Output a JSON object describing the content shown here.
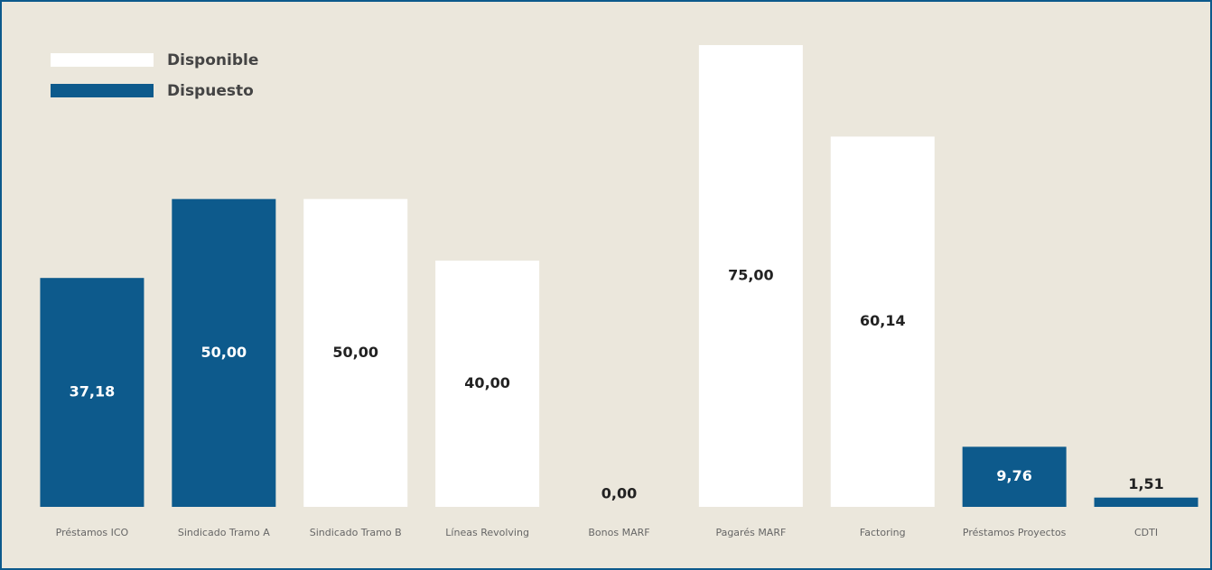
{
  "chart_data": {
    "type": "bar",
    "stacked": true,
    "categories": [
      "Préstamos ICO",
      "Sindicado Tramo A",
      "Sindicado Tramo B",
      "Líneas Revolving",
      "Bonos MARF",
      "Pagarés MARF",
      "Factoring",
      "Préstamos Proyectos",
      "CDTI"
    ],
    "series": [
      {
        "name": "Disponible",
        "color": "#ffffff",
        "values": [
          null,
          null,
          50,
          40,
          0,
          75,
          60.14,
          null,
          null
        ],
        "value_labels": [
          null,
          null,
          "50,00",
          "40,00",
          "0,00",
          "75,00",
          "60,14",
          null,
          null
        ]
      },
      {
        "name": "Dispuesto",
        "color": "#0d5a8c",
        "values": [
          37.18,
          50,
          null,
          null,
          null,
          null,
          null,
          9.76,
          1.51
        ],
        "value_labels": [
          "37,18",
          "50,00",
          null,
          null,
          null,
          null,
          null,
          "9,76",
          "1,51"
        ]
      }
    ],
    "legend": "top-left"
  }
}
